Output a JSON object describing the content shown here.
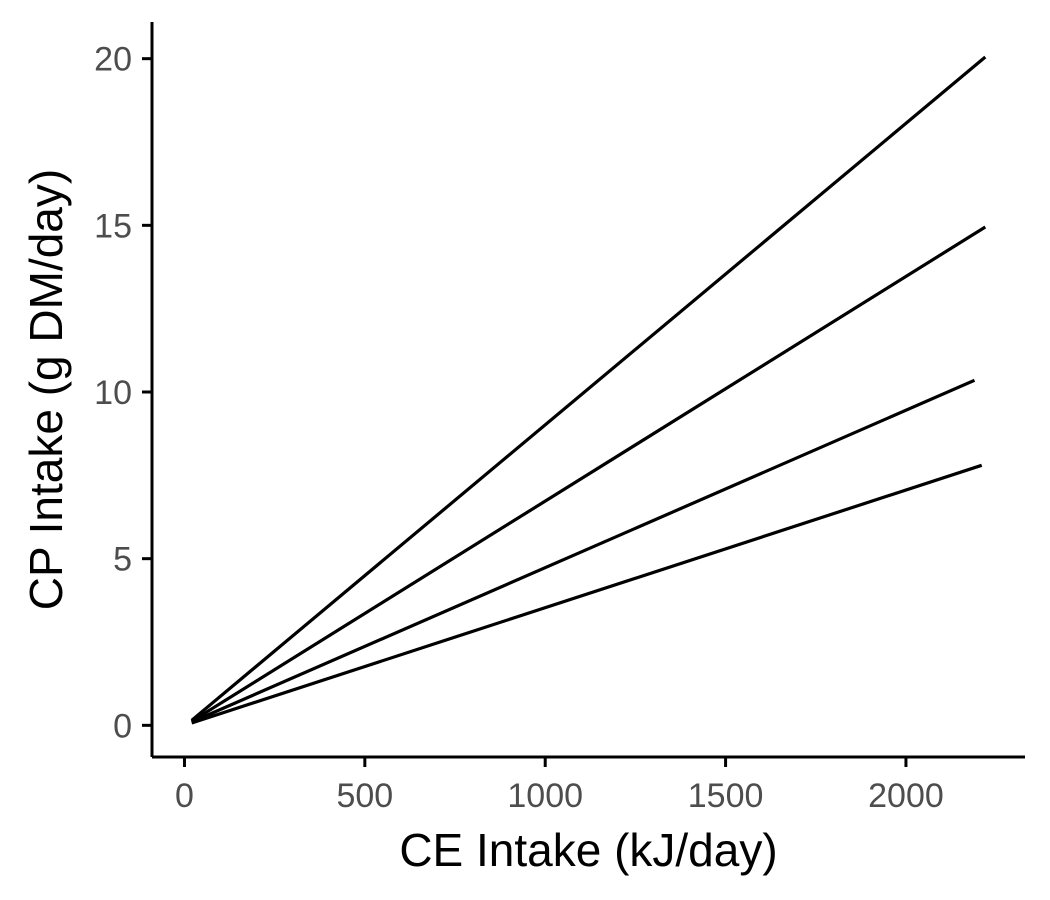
{
  "chart_data": {
    "type": "line",
    "title": "",
    "xlabel": "CE Intake (kJ/day)",
    "ylabel": "CP Intake (g DM/day)",
    "xlim": [
      -90,
      2330
    ],
    "ylim": [
      -0.95,
      21.1
    ],
    "xticks": [
      0,
      500,
      1000,
      1500,
      2000
    ],
    "xtick_labels": [
      "0",
      "500",
      "1000",
      "1500",
      "2000"
    ],
    "yticks": [
      0,
      5,
      10,
      15,
      20
    ],
    "ytick_labels": [
      "0",
      "5",
      "10",
      "15",
      "20"
    ],
    "grid": false,
    "legend": "none",
    "series": [
      {
        "x": [
          20,
          2220
        ],
        "y": [
          0.15,
          20.05
        ]
      },
      {
        "x": [
          20,
          2220
        ],
        "y": [
          0.12,
          14.95
        ]
      },
      {
        "x": [
          20,
          2190
        ],
        "y": [
          0.1,
          10.35
        ]
      },
      {
        "x": [
          20,
          2210
        ],
        "y": [
          0.07,
          7.8
        ]
      }
    ],
    "colors": {
      "line": "#000000",
      "axis": "#000000",
      "tick_label": "#4d4d4d"
    }
  }
}
